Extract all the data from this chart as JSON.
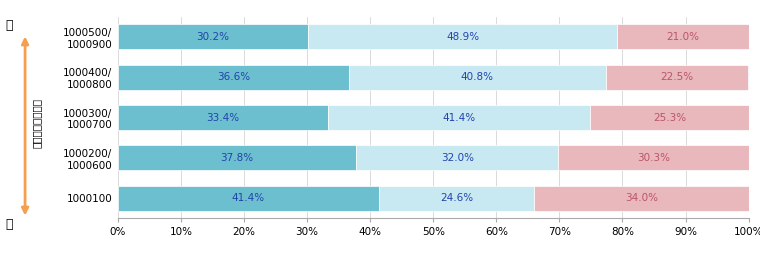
{
  "categories": [
    "1000500/\n1000900",
    "1000400/\n1000800",
    "1000300/\n1000700",
    "1000200/\n1000600",
    "1000100"
  ],
  "series": {
    "円建て資産": [
      41.4,
      37.8,
      33.4,
      36.6,
      30.2
    ],
    "為替ヘッジ付資産": [
      24.6,
      32.0,
      41.4,
      40.8,
      48.9
    ],
    "為替ヘッジなし資産": [
      34.0,
      30.3,
      25.3,
      22.5,
      21.0
    ]
  },
  "colors": {
    "円建て資産": "#6bbfcf",
    "為替ヘッジ付資産": "#c8e8f2",
    "為替ヘッジなし資産": "#e8b8bc"
  },
  "label_colors": {
    "円建て資産": "#2244aa",
    "為替ヘッジ付資産": "#2244aa",
    "為替ヘッジなし資産": "#bb5566"
  },
  "xlabel_ticks": [
    0,
    10,
    20,
    30,
    40,
    50,
    60,
    70,
    80,
    90,
    100
  ],
  "bar_height": 0.62,
  "figsize": [
    7.6,
    2.8
  ],
  "dpi": 100,
  "left_arrow_label_top": "高",
  "left_arrow_label_bottom": "低",
  "left_arrow_label_middle": "リスク・リターン"
}
